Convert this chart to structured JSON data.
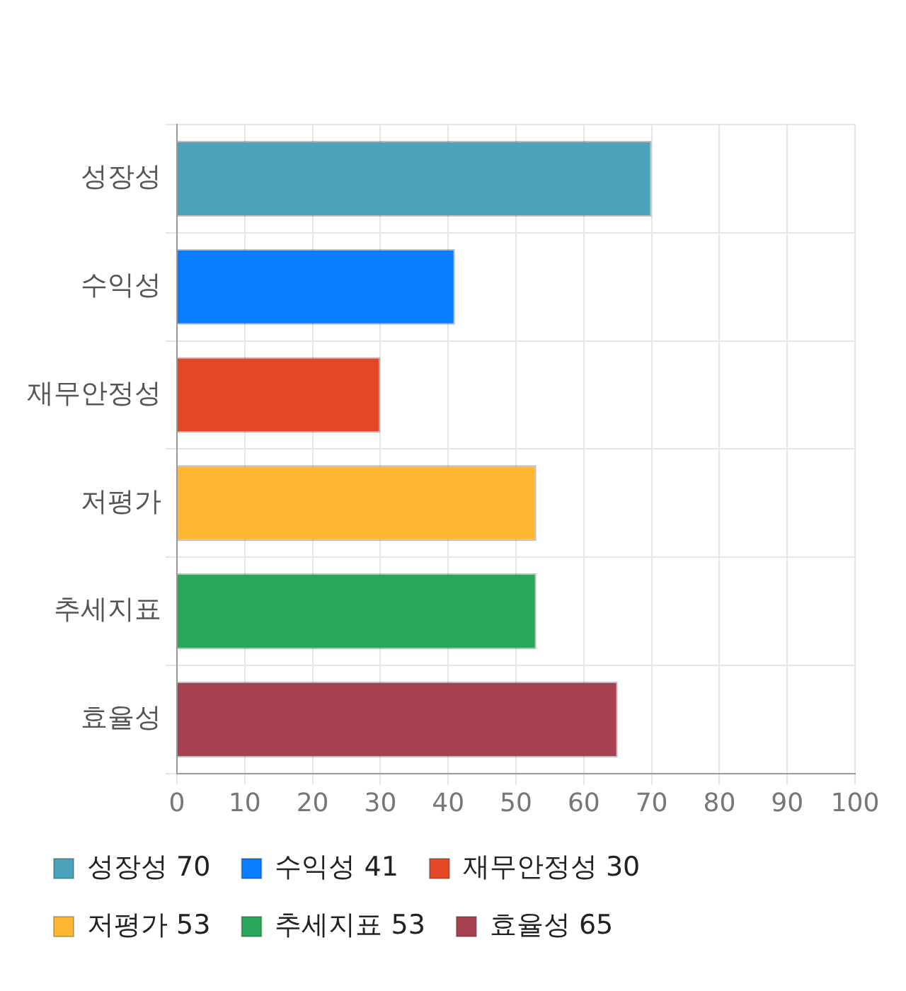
{
  "chart_data": {
    "type": "bar",
    "orientation": "horizontal",
    "stacked": true,
    "categories": [
      "성장성",
      "수익성",
      "재무안정성",
      "저평가",
      "추세지표",
      "효율성"
    ],
    "series": [
      {
        "name": "성장성 70",
        "color": "#4aa3bb",
        "values": [
          70,
          null,
          null,
          null,
          null,
          null
        ]
      },
      {
        "name": "수익성 41",
        "color": "#0a7cff",
        "values": [
          null,
          41,
          null,
          null,
          null,
          null
        ]
      },
      {
        "name": "재무안정성 30",
        "color": "#e34726",
        "values": [
          null,
          null,
          30,
          null,
          null,
          null
        ]
      },
      {
        "name": "저평가 53",
        "color": "#ffb732",
        "values": [
          null,
          null,
          null,
          53,
          null,
          null
        ]
      },
      {
        "name": "추세지표 53",
        "color": "#2aa75a",
        "values": [
          null,
          null,
          null,
          null,
          53,
          null
        ]
      },
      {
        "name": "효율성 65",
        "color": "#a8414f",
        "values": [
          null,
          null,
          null,
          null,
          null,
          65
        ]
      }
    ],
    "xlim": [
      0,
      100
    ],
    "xticks": [
      0,
      10,
      20,
      30,
      40,
      50,
      60,
      70,
      80,
      90,
      100
    ],
    "grid": true,
    "legend": "bottom"
  }
}
